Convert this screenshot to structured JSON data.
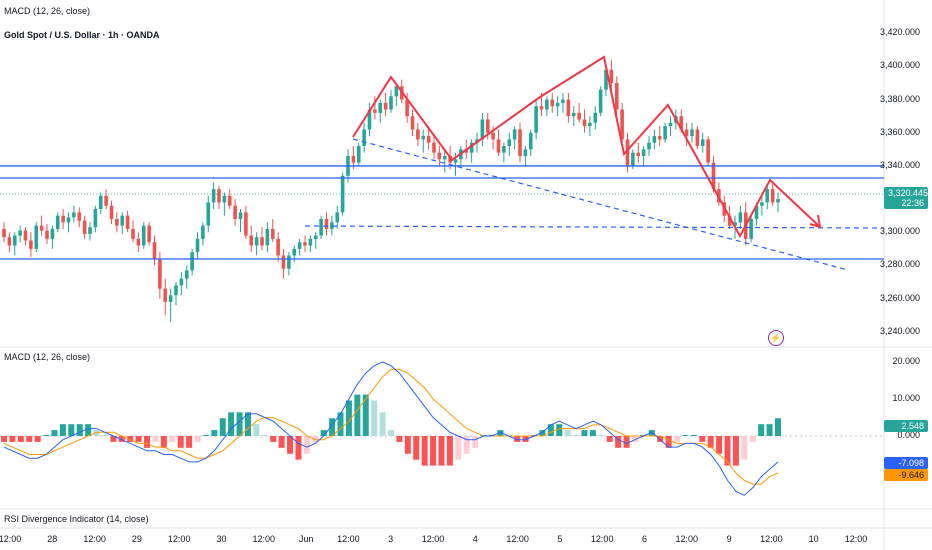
{
  "header_indicator": "MACD (12, 26, close)",
  "symbol_title": "Gold Spot / U.S. Dollar · 1h · OANDA",
  "price_axis": [
    "3,420.000",
    "3,400.000",
    "3,380.000",
    "3,360.000",
    "3,340.000",
    "3,300.000",
    "3,280.000",
    "3,260.000",
    "3,240.000"
  ],
  "last_price": {
    "value": "3,320.445",
    "countdown": "22:36",
    "color": "#26a69a"
  },
  "macd_pane": {
    "label": "MACD (12, 26, close)",
    "axis": [
      "20.000",
      "10.000",
      "0.000"
    ],
    "histogram_value": "2.548",
    "macd_value": "-7.098",
    "signal_value": "-9.646",
    "macd_color": "#2962ff",
    "signal_color": "#ff9800"
  },
  "rsi_pane": {
    "label": "RSI Divergence Indicator (14, close)"
  },
  "time_axis": [
    "12:00",
    "28",
    "12:00",
    "29",
    "12:00",
    "30",
    "12:00",
    "Jun",
    "12:00",
    "3",
    "12:00",
    "4",
    "12:00",
    "5",
    "12:00",
    "6",
    "12:00",
    "9",
    "12:00",
    "10",
    "12:00"
  ],
  "colors": {
    "up": "#26a69a",
    "down": "#ef5350",
    "level": "#2962ff",
    "drawing": "#f23645"
  },
  "chart_data": {
    "type": "candlestick",
    "ylim": [
      3232,
      3428
    ],
    "horizontal_levels": [
      3340,
      3330,
      3280
    ],
    "dashed_levels": [
      3301
    ],
    "candles": [
      [
        3302,
        3306,
        3294,
        3297
      ],
      [
        3297,
        3300,
        3288,
        3292
      ],
      [
        3292,
        3300,
        3286,
        3298
      ],
      [
        3298,
        3304,
        3294,
        3301
      ],
      [
        3301,
        3303,
        3292,
        3295
      ],
      [
        3295,
        3300,
        3285,
        3290
      ],
      [
        3290,
        3306,
        3288,
        3304
      ],
      [
        3304,
        3310,
        3298,
        3301
      ],
      [
        3301,
        3305,
        3293,
        3296
      ],
      [
        3296,
        3304,
        3290,
        3302
      ],
      [
        3302,
        3312,
        3300,
        3310
      ],
      [
        3310,
        3314,
        3302,
        3306
      ],
      [
        3306,
        3312,
        3300,
        3309
      ],
      [
        3309,
        3316,
        3306,
        3312
      ],
      [
        3312,
        3315,
        3303,
        3307
      ],
      [
        3307,
        3310,
        3296,
        3299
      ],
      [
        3299,
        3306,
        3295,
        3303
      ],
      [
        3303,
        3316,
        3300,
        3314
      ],
      [
        3314,
        3324,
        3311,
        3322
      ],
      [
        3322,
        3326,
        3314,
        3316
      ],
      [
        3316,
        3319,
        3305,
        3308
      ],
      [
        3308,
        3312,
        3300,
        3304
      ],
      [
        3304,
        3312,
        3299,
        3310
      ],
      [
        3310,
        3313,
        3300,
        3302
      ],
      [
        3302,
        3307,
        3294,
        3296
      ],
      [
        3296,
        3300,
        3288,
        3292
      ],
      [
        3292,
        3306,
        3290,
        3304
      ],
      [
        3304,
        3306,
        3292,
        3294
      ],
      [
        3294,
        3298,
        3280,
        3284
      ],
      [
        3284,
        3288,
        3260,
        3266
      ],
      [
        3266,
        3272,
        3250,
        3258
      ],
      [
        3258,
        3266,
        3246,
        3262
      ],
      [
        3262,
        3270,
        3256,
        3268
      ],
      [
        3268,
        3276,
        3262,
        3272
      ],
      [
        3272,
        3280,
        3266,
        3277
      ],
      [
        3277,
        3290,
        3274,
        3288
      ],
      [
        3288,
        3300,
        3284,
        3296
      ],
      [
        3296,
        3306,
        3292,
        3304
      ],
      [
        3304,
        3322,
        3300,
        3318
      ],
      [
        3318,
        3330,
        3314,
        3326
      ],
      [
        3326,
        3328,
        3314,
        3318
      ],
      [
        3318,
        3324,
        3310,
        3322
      ],
      [
        3322,
        3326,
        3314,
        3316
      ],
      [
        3316,
        3320,
        3304,
        3308
      ],
      [
        3308,
        3314,
        3300,
        3312
      ],
      [
        3312,
        3316,
        3296,
        3298
      ],
      [
        3298,
        3304,
        3288,
        3292
      ],
      [
        3292,
        3300,
        3286,
        3297
      ],
      [
        3297,
        3303,
        3289,
        3292
      ],
      [
        3292,
        3306,
        3288,
        3302
      ],
      [
        3302,
        3308,
        3294,
        3296
      ],
      [
        3296,
        3300,
        3282,
        3286
      ],
      [
        3286,
        3290,
        3272,
        3278
      ],
      [
        3278,
        3288,
        3274,
        3286
      ],
      [
        3286,
        3292,
        3282,
        3290
      ],
      [
        3290,
        3296,
        3286,
        3294
      ],
      [
        3294,
        3298,
        3288,
        3292
      ],
      [
        3292,
        3298,
        3288,
        3296
      ],
      [
        3296,
        3300,
        3290,
        3298
      ],
      [
        3298,
        3310,
        3296,
        3308
      ],
      [
        3308,
        3312,
        3298,
        3302
      ],
      [
        3302,
        3310,
        3298,
        3306
      ],
      [
        3306,
        3316,
        3302,
        3312
      ],
      [
        3312,
        3336,
        3310,
        3334
      ],
      [
        3334,
        3350,
        3330,
        3346
      ],
      [
        3346,
        3352,
        3338,
        3342
      ],
      [
        3342,
        3354,
        3340,
        3352
      ],
      [
        3352,
        3366,
        3348,
        3362
      ],
      [
        3362,
        3378,
        3358,
        3374
      ],
      [
        3374,
        3382,
        3368,
        3372
      ],
      [
        3372,
        3380,
        3366,
        3378
      ],
      [
        3378,
        3384,
        3370,
        3374
      ],
      [
        3374,
        3386,
        3372,
        3382
      ],
      [
        3382,
        3390,
        3376,
        3388
      ],
      [
        3388,
        3392,
        3378,
        3380
      ],
      [
        3380,
        3384,
        3366,
        3370
      ],
      [
        3370,
        3374,
        3358,
        3362
      ],
      [
        3362,
        3366,
        3352,
        3356
      ],
      [
        3356,
        3362,
        3348,
        3358
      ],
      [
        3358,
        3364,
        3350,
        3354
      ],
      [
        3354,
        3358,
        3344,
        3348
      ],
      [
        3348,
        3352,
        3340,
        3344
      ],
      [
        3344,
        3350,
        3336,
        3346
      ],
      [
        3346,
        3352,
        3338,
        3342
      ],
      [
        3342,
        3348,
        3334,
        3344
      ],
      [
        3344,
        3352,
        3340,
        3350
      ],
      [
        3350,
        3356,
        3344,
        3348
      ],
      [
        3348,
        3356,
        3342,
        3354
      ],
      [
        3354,
        3360,
        3348,
        3356
      ],
      [
        3356,
        3372,
        3352,
        3368
      ],
      [
        3368,
        3372,
        3356,
        3360
      ],
      [
        3360,
        3364,
        3350,
        3356
      ],
      [
        3356,
        3362,
        3346,
        3348
      ],
      [
        3348,
        3354,
        3342,
        3352
      ],
      [
        3352,
        3360,
        3346,
        3356
      ],
      [
        3356,
        3364,
        3350,
        3362
      ],
      [
        3362,
        3366,
        3342,
        3346
      ],
      [
        3346,
        3352,
        3340,
        3350
      ],
      [
        3350,
        3362,
        3346,
        3360
      ],
      [
        3360,
        3380,
        3356,
        3376
      ],
      [
        3376,
        3384,
        3370,
        3374
      ],
      [
        3374,
        3382,
        3370,
        3380
      ],
      [
        3380,
        3384,
        3372,
        3376
      ],
      [
        3376,
        3382,
        3370,
        3378
      ],
      [
        3378,
        3384,
        3372,
        3380
      ],
      [
        3380,
        3384,
        3366,
        3370
      ],
      [
        3370,
        3376,
        3364,
        3372
      ],
      [
        3372,
        3378,
        3366,
        3368
      ],
      [
        3368,
        3374,
        3360,
        3364
      ],
      [
        3364,
        3370,
        3358,
        3366
      ],
      [
        3366,
        3376,
        3362,
        3372
      ],
      [
        3372,
        3388,
        3370,
        3386
      ],
      [
        3386,
        3400,
        3382,
        3398
      ],
      [
        3398,
        3404,
        3384,
        3390
      ],
      [
        3390,
        3394,
        3370,
        3374
      ],
      [
        3374,
        3378,
        3352,
        3356
      ],
      [
        3356,
        3360,
        3336,
        3340
      ],
      [
        3340,
        3350,
        3338,
        3348
      ],
      [
        3348,
        3354,
        3342,
        3346
      ],
      [
        3346,
        3352,
        3340,
        3350
      ],
      [
        3350,
        3358,
        3346,
        3354
      ],
      [
        3354,
        3362,
        3350,
        3358
      ],
      [
        3358,
        3364,
        3352,
        3356
      ],
      [
        3356,
        3366,
        3354,
        3364
      ],
      [
        3364,
        3370,
        3358,
        3366
      ],
      [
        3366,
        3374,
        3362,
        3370
      ],
      [
        3370,
        3374,
        3360,
        3362
      ],
      [
        3362,
        3366,
        3352,
        3358
      ],
      [
        3358,
        3366,
        3354,
        3362
      ],
      [
        3362,
        3364,
        3350,
        3352
      ],
      [
        3352,
        3360,
        3348,
        3356
      ],
      [
        3356,
        3358,
        3340,
        3342
      ],
      [
        3342,
        3346,
        3324,
        3326
      ],
      [
        3326,
        3330,
        3316,
        3318
      ],
      [
        3318,
        3322,
        3306,
        3310
      ],
      [
        3310,
        3316,
        3302,
        3304
      ],
      [
        3304,
        3310,
        3296,
        3306
      ],
      [
        3306,
        3316,
        3302,
        3312
      ],
      [
        3312,
        3318,
        3292,
        3296
      ],
      [
        3296,
        3310,
        3294,
        3308
      ],
      [
        3308,
        3318,
        3304,
        3316
      ],
      [
        3316,
        3324,
        3310,
        3318
      ],
      [
        3318,
        3328,
        3314,
        3326
      ],
      [
        3326,
        3330,
        3316,
        3318
      ],
      [
        3318,
        3324,
        3312,
        3320
      ]
    ],
    "macd_line": [
      -3,
      -4,
      -5,
      -6,
      -6,
      -5,
      -3,
      -1,
      0,
      1,
      2,
      2,
      1,
      0,
      -1,
      -2,
      -3,
      -4,
      -4,
      -5,
      -5,
      -6,
      -7,
      -7,
      -6,
      -4,
      -1,
      2,
      4,
      6,
      6,
      5,
      4,
      2,
      0,
      -2,
      -3,
      -2,
      0,
      3,
      6,
      10,
      14,
      17,
      19,
      20,
      19,
      17,
      14,
      11,
      8,
      5,
      3,
      1,
      0,
      -1,
      -1,
      0,
      0,
      1,
      0,
      -1,
      -1,
      0,
      1,
      3,
      4,
      3,
      2,
      3,
      4,
      3,
      1,
      -1,
      -2,
      -1,
      0,
      1,
      -1,
      -3,
      -3,
      -2,
      -2,
      -3,
      -5,
      -8,
      -12,
      -15,
      -16,
      -14,
      -11,
      -9,
      -7
    ],
    "signal_line": [
      -2,
      -3,
      -4,
      -5,
      -5,
      -5,
      -4,
      -3,
      -2,
      -1,
      0,
      1,
      1,
      1,
      0,
      -1,
      -2,
      -2,
      -3,
      -3,
      -4,
      -4,
      -5,
      -6,
      -6,
      -5,
      -4,
      -2,
      0,
      2,
      4,
      5,
      5,
      4,
      3,
      2,
      0,
      -1,
      -1,
      0,
      2,
      4,
      7,
      10,
      13,
      16,
      18,
      18,
      17,
      15,
      13,
      10,
      8,
      6,
      4,
      2,
      1,
      0,
      0,
      0,
      0,
      0,
      0,
      0,
      0,
      1,
      2,
      2,
      2,
      2,
      3,
      3,
      2,
      1,
      0,
      0,
      0,
      0,
      0,
      -1,
      -2,
      -2,
      -2,
      -2,
      -3,
      -5,
      -7,
      -10,
      -12,
      -13,
      -13,
      -11,
      -10
    ],
    "histogram_last": 2.548
  }
}
